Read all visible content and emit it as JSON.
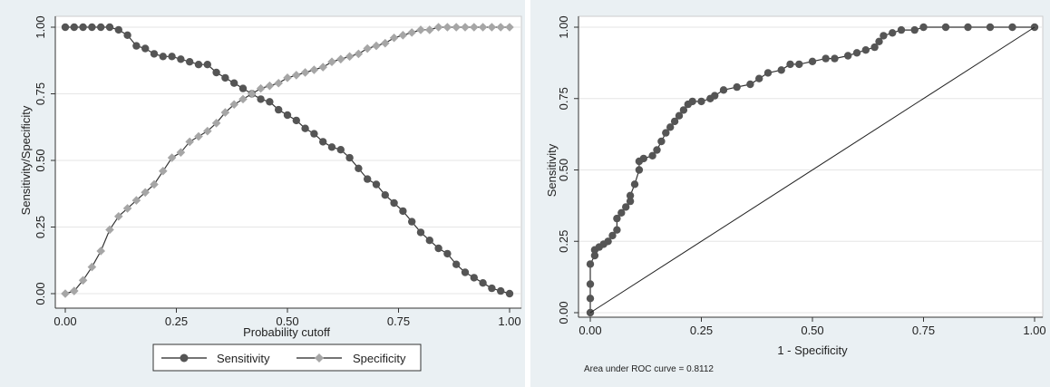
{
  "chart_data": [
    {
      "type": "line",
      "xlabel": "Probability cutoff",
      "ylabel": "Sensitivity/Specificity",
      "xlim": [
        0,
        1
      ],
      "ylim": [
        0,
        1
      ],
      "x_ticks": [
        "0.00",
        "0.25",
        "0.50",
        "0.75",
        "1.00"
      ],
      "y_ticks": [
        "0.00",
        "0.25",
        "0.50",
        "0.75",
        "1.00"
      ],
      "grid": true,
      "legend_position": "bottom",
      "series": [
        {
          "name": "Sensitivity",
          "color": "#555555",
          "marker": "circle",
          "x": [
            0.0,
            0.02,
            0.04,
            0.06,
            0.08,
            0.1,
            0.12,
            0.14,
            0.16,
            0.18,
            0.2,
            0.22,
            0.24,
            0.26,
            0.28,
            0.3,
            0.32,
            0.34,
            0.36,
            0.38,
            0.4,
            0.42,
            0.44,
            0.46,
            0.48,
            0.5,
            0.52,
            0.54,
            0.56,
            0.58,
            0.6,
            0.62,
            0.64,
            0.66,
            0.68,
            0.7,
            0.72,
            0.74,
            0.76,
            0.78,
            0.8,
            0.82,
            0.84,
            0.86,
            0.88,
            0.9,
            0.92,
            0.94,
            0.96,
            0.98,
            1.0
          ],
          "y": [
            1.0,
            1.0,
            1.0,
            1.0,
            1.0,
            1.0,
            0.99,
            0.97,
            0.93,
            0.92,
            0.9,
            0.89,
            0.89,
            0.88,
            0.87,
            0.86,
            0.86,
            0.83,
            0.81,
            0.79,
            0.77,
            0.75,
            0.73,
            0.72,
            0.69,
            0.67,
            0.65,
            0.62,
            0.6,
            0.57,
            0.55,
            0.54,
            0.51,
            0.47,
            0.43,
            0.41,
            0.37,
            0.34,
            0.31,
            0.27,
            0.23,
            0.2,
            0.17,
            0.15,
            0.11,
            0.08,
            0.06,
            0.04,
            0.02,
            0.01,
            0.0
          ]
        },
        {
          "name": "Specificity",
          "color": "#a6a6a6",
          "marker": "diamond",
          "x": [
            0.0,
            0.02,
            0.04,
            0.06,
            0.08,
            0.1,
            0.12,
            0.14,
            0.16,
            0.18,
            0.2,
            0.22,
            0.24,
            0.26,
            0.28,
            0.3,
            0.32,
            0.34,
            0.36,
            0.38,
            0.4,
            0.42,
            0.44,
            0.46,
            0.48,
            0.5,
            0.52,
            0.54,
            0.56,
            0.58,
            0.6,
            0.62,
            0.64,
            0.66,
            0.68,
            0.7,
            0.72,
            0.74,
            0.76,
            0.78,
            0.8,
            0.82,
            0.84,
            0.86,
            0.88,
            0.9,
            0.92,
            0.94,
            0.96,
            0.98,
            1.0
          ],
          "y": [
            0.0,
            0.01,
            0.05,
            0.1,
            0.16,
            0.24,
            0.29,
            0.32,
            0.35,
            0.38,
            0.41,
            0.46,
            0.51,
            0.53,
            0.57,
            0.59,
            0.61,
            0.64,
            0.68,
            0.71,
            0.73,
            0.75,
            0.77,
            0.78,
            0.79,
            0.81,
            0.82,
            0.83,
            0.84,
            0.85,
            0.87,
            0.88,
            0.89,
            0.9,
            0.92,
            0.93,
            0.94,
            0.96,
            0.97,
            0.98,
            0.99,
            0.99,
            1.0,
            1.0,
            1.0,
            1.0,
            1.0,
            1.0,
            1.0,
            1.0,
            1.0
          ]
        }
      ]
    },
    {
      "type": "line",
      "xlabel": "1 - Specificity",
      "ylabel": "Sensitivity",
      "xlim": [
        0,
        1
      ],
      "ylim": [
        0,
        1
      ],
      "x_ticks": [
        "0.00",
        "0.25",
        "0.50",
        "0.75",
        "1.00"
      ],
      "y_ticks": [
        "0.00",
        "0.25",
        "0.50",
        "0.75",
        "1.00"
      ],
      "grid": true,
      "annotation": "Area under ROC curve = 0.8112",
      "series": [
        {
          "color": "#555555",
          "marker": "circle",
          "x": [
            0.0,
            0.0,
            0.0,
            0.0,
            0.01,
            0.01,
            0.02,
            0.03,
            0.04,
            0.05,
            0.06,
            0.06,
            0.07,
            0.08,
            0.09,
            0.09,
            0.1,
            0.11,
            0.11,
            0.12,
            0.14,
            0.15,
            0.16,
            0.17,
            0.18,
            0.19,
            0.2,
            0.21,
            0.22,
            0.23,
            0.25,
            0.27,
            0.28,
            0.3,
            0.33,
            0.36,
            0.38,
            0.4,
            0.43,
            0.45,
            0.47,
            0.5,
            0.53,
            0.55,
            0.58,
            0.6,
            0.62,
            0.64,
            0.65,
            0.66,
            0.68,
            0.7,
            0.73,
            0.75,
            0.8,
            0.85,
            0.9,
            0.95,
            1.0
          ],
          "y": [
            0.0,
            0.05,
            0.1,
            0.17,
            0.2,
            0.22,
            0.23,
            0.24,
            0.25,
            0.27,
            0.29,
            0.33,
            0.35,
            0.37,
            0.39,
            0.41,
            0.45,
            0.5,
            0.53,
            0.54,
            0.55,
            0.57,
            0.6,
            0.63,
            0.65,
            0.67,
            0.69,
            0.71,
            0.73,
            0.74,
            0.74,
            0.75,
            0.76,
            0.78,
            0.79,
            0.8,
            0.82,
            0.84,
            0.85,
            0.87,
            0.87,
            0.88,
            0.89,
            0.89,
            0.9,
            0.91,
            0.92,
            0.93,
            0.95,
            0.97,
            0.98,
            0.99,
            0.99,
            1.0,
            1.0,
            1.0,
            1.0,
            1.0,
            1.0
          ]
        },
        {
          "color": "#222222",
          "marker": "none",
          "x": [
            0,
            1
          ],
          "y": [
            0,
            1
          ]
        }
      ]
    }
  ]
}
